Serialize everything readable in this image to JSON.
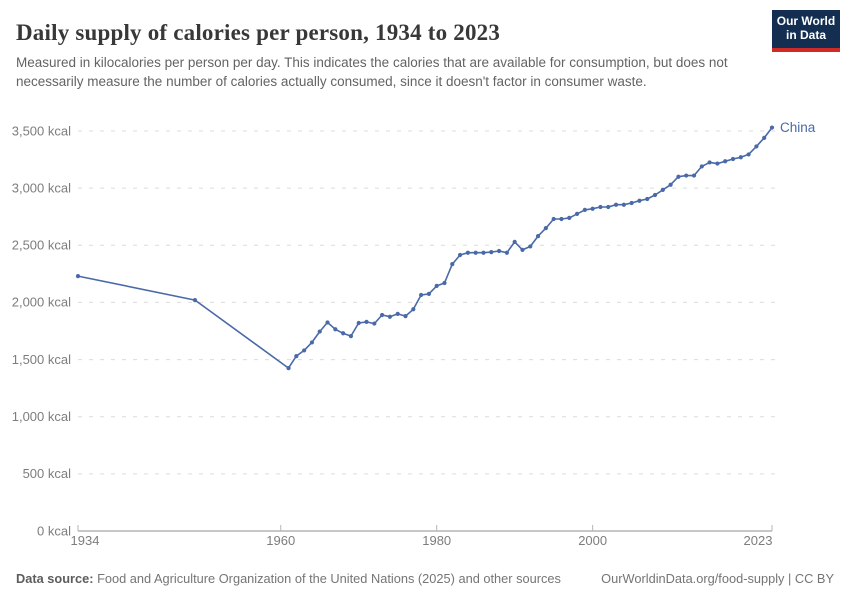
{
  "header": {
    "title": "Daily supply of calories per person, 1934 to 2023",
    "subtitle": "Measured in kilocalories per person per day. This indicates the calories that are available for consumption, but does not necessarily measure the number of calories actually consumed, since it doesn't factor in consumer waste."
  },
  "logo": {
    "line1": "Our World",
    "line2": "in Data",
    "bg_color": "#132e51",
    "accent_color": "#cf2b26"
  },
  "chart_data": {
    "type": "line",
    "title": "Daily supply of calories per person, 1934 to 2023",
    "xlabel": "",
    "ylabel": "",
    "xlim": [
      1934,
      2023
    ],
    "ylim": [
      0,
      3500
    ],
    "xticks": [
      1934,
      1960,
      1980,
      2000,
      2023
    ],
    "yticks": [
      0,
      500,
      1000,
      1500,
      2000,
      2500,
      3000,
      3500
    ],
    "ytick_suffix": " kcal",
    "grid": "horizontal-dashed",
    "legend_position": "end-of-line-label",
    "series": [
      {
        "name": "China",
        "color": "#4a69a8",
        "end_label": "China",
        "points": [
          [
            1934,
            2230
          ],
          [
            1949,
            2020
          ],
          [
            1961,
            1425
          ],
          [
            1962,
            1530
          ],
          [
            1963,
            1580
          ],
          [
            1964,
            1650
          ],
          [
            1965,
            1745
          ],
          [
            1966,
            1825
          ],
          [
            1967,
            1765
          ],
          [
            1968,
            1730
          ],
          [
            1969,
            1705
          ],
          [
            1970,
            1820
          ],
          [
            1971,
            1830
          ],
          [
            1972,
            1815
          ],
          [
            1973,
            1890
          ],
          [
            1974,
            1875
          ],
          [
            1975,
            1900
          ],
          [
            1976,
            1880
          ],
          [
            1977,
            1940
          ],
          [
            1978,
            2065
          ],
          [
            1979,
            2075
          ],
          [
            1980,
            2145
          ],
          [
            1981,
            2170
          ],
          [
            1982,
            2335
          ],
          [
            1983,
            2415
          ],
          [
            1984,
            2435
          ],
          [
            1985,
            2435
          ],
          [
            1986,
            2435
          ],
          [
            1987,
            2440
          ],
          [
            1988,
            2450
          ],
          [
            1989,
            2435
          ],
          [
            1990,
            2530
          ],
          [
            1991,
            2460
          ],
          [
            1992,
            2490
          ],
          [
            1993,
            2580
          ],
          [
            1994,
            2650
          ],
          [
            1995,
            2730
          ],
          [
            1996,
            2730
          ],
          [
            1997,
            2740
          ],
          [
            1998,
            2775
          ],
          [
            1999,
            2810
          ],
          [
            2000,
            2820
          ],
          [
            2001,
            2835
          ],
          [
            2002,
            2835
          ],
          [
            2003,
            2855
          ],
          [
            2004,
            2855
          ],
          [
            2005,
            2870
          ],
          [
            2006,
            2890
          ],
          [
            2007,
            2905
          ],
          [
            2008,
            2940
          ],
          [
            2009,
            2985
          ],
          [
            2010,
            3030
          ],
          [
            2011,
            3100
          ],
          [
            2012,
            3110
          ],
          [
            2013,
            3110
          ],
          [
            2014,
            3190
          ],
          [
            2015,
            3225
          ],
          [
            2016,
            3215
          ],
          [
            2017,
            3235
          ],
          [
            2018,
            3255
          ],
          [
            2019,
            3270
          ],
          [
            2020,
            3295
          ],
          [
            2021,
            3365
          ],
          [
            2022,
            3440
          ],
          [
            2023,
            3530
          ]
        ]
      }
    ],
    "colors": {
      "gridline": "#dcdcdc",
      "axis": "#8f8f8f",
      "tick_label": "#7d7d7d"
    }
  },
  "footer": {
    "source_label": "Data source:",
    "source_text": " Food and Agriculture Organization of the United Nations (2025) and other sources",
    "link_text": "OurWorldinData.org/food-supply | CC BY"
  }
}
